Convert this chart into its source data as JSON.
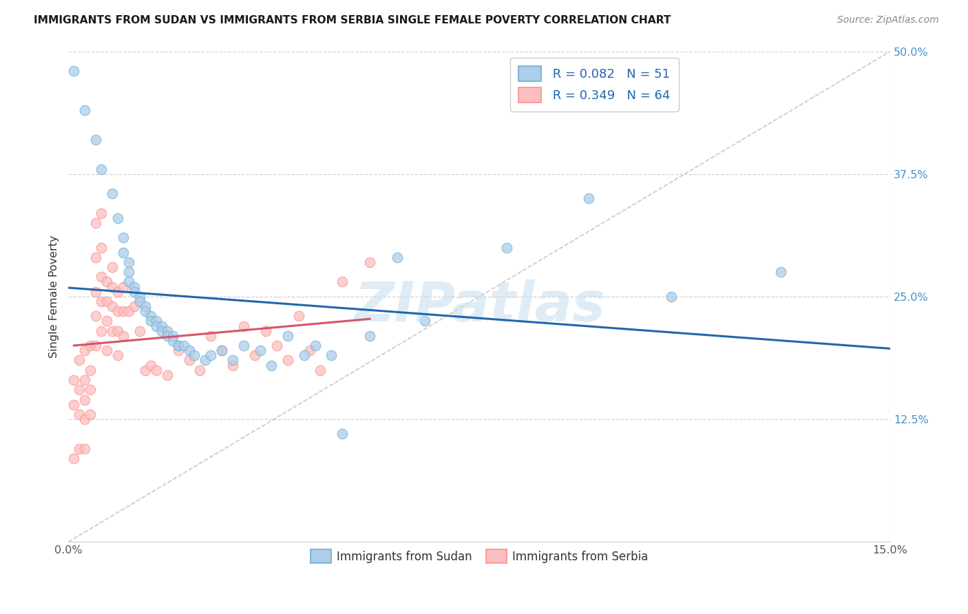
{
  "title": "IMMIGRANTS FROM SUDAN VS IMMIGRANTS FROM SERBIA SINGLE FEMALE POVERTY CORRELATION CHART",
  "source": "Source: ZipAtlas.com",
  "ylabel": "Single Female Poverty",
  "color_sudan": "#6baed6",
  "color_serbia": "#fc8d8d",
  "color_sudan_fill": "#aecde8",
  "color_serbia_fill": "#fbbebe",
  "line_color_sudan": "#2166ac",
  "line_color_serbia": "#d6546a",
  "line_color_diagonal": "#d0b0b0",
  "watermark": "ZIPatlas",
  "xmin": 0.0,
  "xmax": 0.15,
  "ymin": 0.0,
  "ymax": 0.5,
  "sudan_x": [
    0.001,
    0.003,
    0.005,
    0.006,
    0.008,
    0.009,
    0.01,
    0.01,
    0.011,
    0.011,
    0.011,
    0.012,
    0.012,
    0.013,
    0.013,
    0.014,
    0.014,
    0.015,
    0.015,
    0.016,
    0.016,
    0.017,
    0.017,
    0.018,
    0.018,
    0.019,
    0.019,
    0.02,
    0.02,
    0.021,
    0.022,
    0.023,
    0.025,
    0.026,
    0.028,
    0.03,
    0.032,
    0.035,
    0.037,
    0.04,
    0.043,
    0.045,
    0.048,
    0.05,
    0.055,
    0.06,
    0.065,
    0.08,
    0.095,
    0.11,
    0.13
  ],
  "sudan_y": [
    0.48,
    0.44,
    0.41,
    0.38,
    0.355,
    0.33,
    0.31,
    0.295,
    0.285,
    0.275,
    0.265,
    0.26,
    0.255,
    0.25,
    0.245,
    0.24,
    0.235,
    0.23,
    0.225,
    0.225,
    0.22,
    0.22,
    0.215,
    0.215,
    0.21,
    0.21,
    0.205,
    0.2,
    0.2,
    0.2,
    0.195,
    0.19,
    0.185,
    0.19,
    0.195,
    0.185,
    0.2,
    0.195,
    0.18,
    0.21,
    0.19,
    0.2,
    0.19,
    0.11,
    0.21,
    0.29,
    0.225,
    0.3,
    0.35,
    0.25,
    0.275
  ],
  "serbia_x": [
    0.001,
    0.001,
    0.001,
    0.002,
    0.002,
    0.002,
    0.002,
    0.003,
    0.003,
    0.003,
    0.003,
    0.003,
    0.004,
    0.004,
    0.004,
    0.004,
    0.005,
    0.005,
    0.005,
    0.005,
    0.005,
    0.006,
    0.006,
    0.006,
    0.006,
    0.006,
    0.007,
    0.007,
    0.007,
    0.007,
    0.008,
    0.008,
    0.008,
    0.008,
    0.009,
    0.009,
    0.009,
    0.009,
    0.01,
    0.01,
    0.01,
    0.011,
    0.012,
    0.013,
    0.014,
    0.015,
    0.016,
    0.018,
    0.02,
    0.022,
    0.024,
    0.026,
    0.028,
    0.03,
    0.032,
    0.034,
    0.036,
    0.038,
    0.04,
    0.042,
    0.044,
    0.046,
    0.05,
    0.055
  ],
  "serbia_y": [
    0.165,
    0.14,
    0.085,
    0.185,
    0.155,
    0.13,
    0.095,
    0.195,
    0.165,
    0.145,
    0.125,
    0.095,
    0.2,
    0.175,
    0.155,
    0.13,
    0.325,
    0.29,
    0.255,
    0.23,
    0.2,
    0.335,
    0.3,
    0.27,
    0.245,
    0.215,
    0.265,
    0.245,
    0.225,
    0.195,
    0.28,
    0.26,
    0.24,
    0.215,
    0.255,
    0.235,
    0.215,
    0.19,
    0.26,
    0.235,
    0.21,
    0.235,
    0.24,
    0.215,
    0.175,
    0.18,
    0.175,
    0.17,
    0.195,
    0.185,
    0.175,
    0.21,
    0.195,
    0.18,
    0.22,
    0.19,
    0.215,
    0.2,
    0.185,
    0.23,
    0.195,
    0.175,
    0.265,
    0.285
  ]
}
